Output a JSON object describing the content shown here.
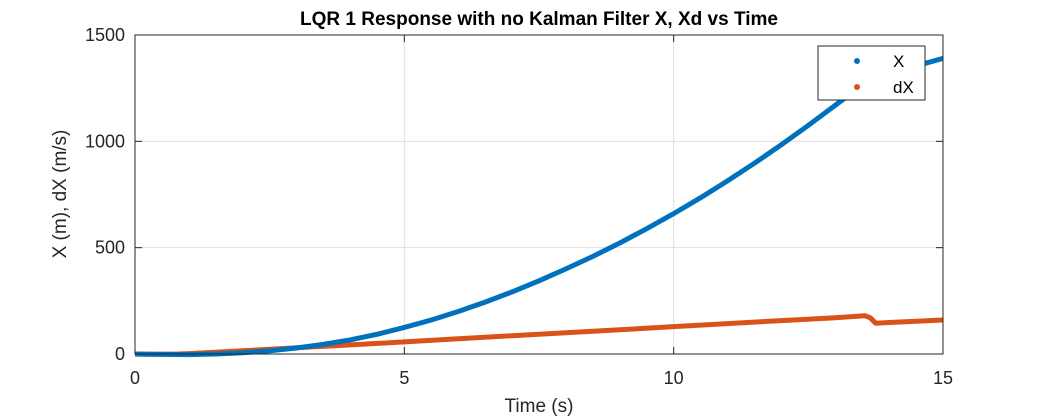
{
  "chart_data": {
    "type": "line",
    "title": "LQR 1 Response with no Kalman Filter  X, Xd vs Time",
    "xlabel": "Time (s)",
    "ylabel": "X (m), dX (m/s)",
    "xlim": [
      0,
      15
    ],
    "ylim": [
      0,
      1500
    ],
    "xticks": [
      "0",
      "5",
      "10",
      "15"
    ],
    "yticks": [
      "0",
      "500",
      "1000",
      "1500"
    ],
    "grid": true,
    "legend_position": "top-right",
    "series": [
      {
        "name": "X",
        "color": "#0072BD",
        "x": [
          0,
          0.5,
          1,
          1.5,
          2,
          2.5,
          3,
          3.5,
          4,
          4.5,
          5,
          5.5,
          6,
          6.5,
          7,
          7.5,
          8,
          8.5,
          9,
          9.5,
          10,
          10.5,
          11,
          11.5,
          12,
          12.5,
          13,
          13.5,
          14,
          14.5,
          15
        ],
        "y": [
          0,
          -2,
          -3,
          0,
          6,
          15,
          28,
          45,
          67,
          93,
          125,
          160,
          200,
          244,
          292,
          344,
          400,
          459,
          522,
          589,
          660,
          735,
          814,
          897,
          984,
          1075,
          1170,
          1263,
          1319,
          1355,
          1390
        ]
      },
      {
        "name": "dX",
        "color": "#D95319",
        "x": [
          0,
          0.2,
          0.4,
          0.8,
          1,
          2,
          3,
          4,
          5,
          6,
          7,
          8,
          9,
          10,
          11,
          12,
          13,
          13.55,
          13.65,
          13.75,
          14,
          15
        ],
        "y": [
          0,
          -1,
          -1,
          0,
          2,
          15,
          29,
          43,
          57,
          72,
          86,
          100,
          114,
          129,
          143,
          157,
          170,
          180,
          170,
          145,
          148,
          160
        ]
      }
    ]
  }
}
